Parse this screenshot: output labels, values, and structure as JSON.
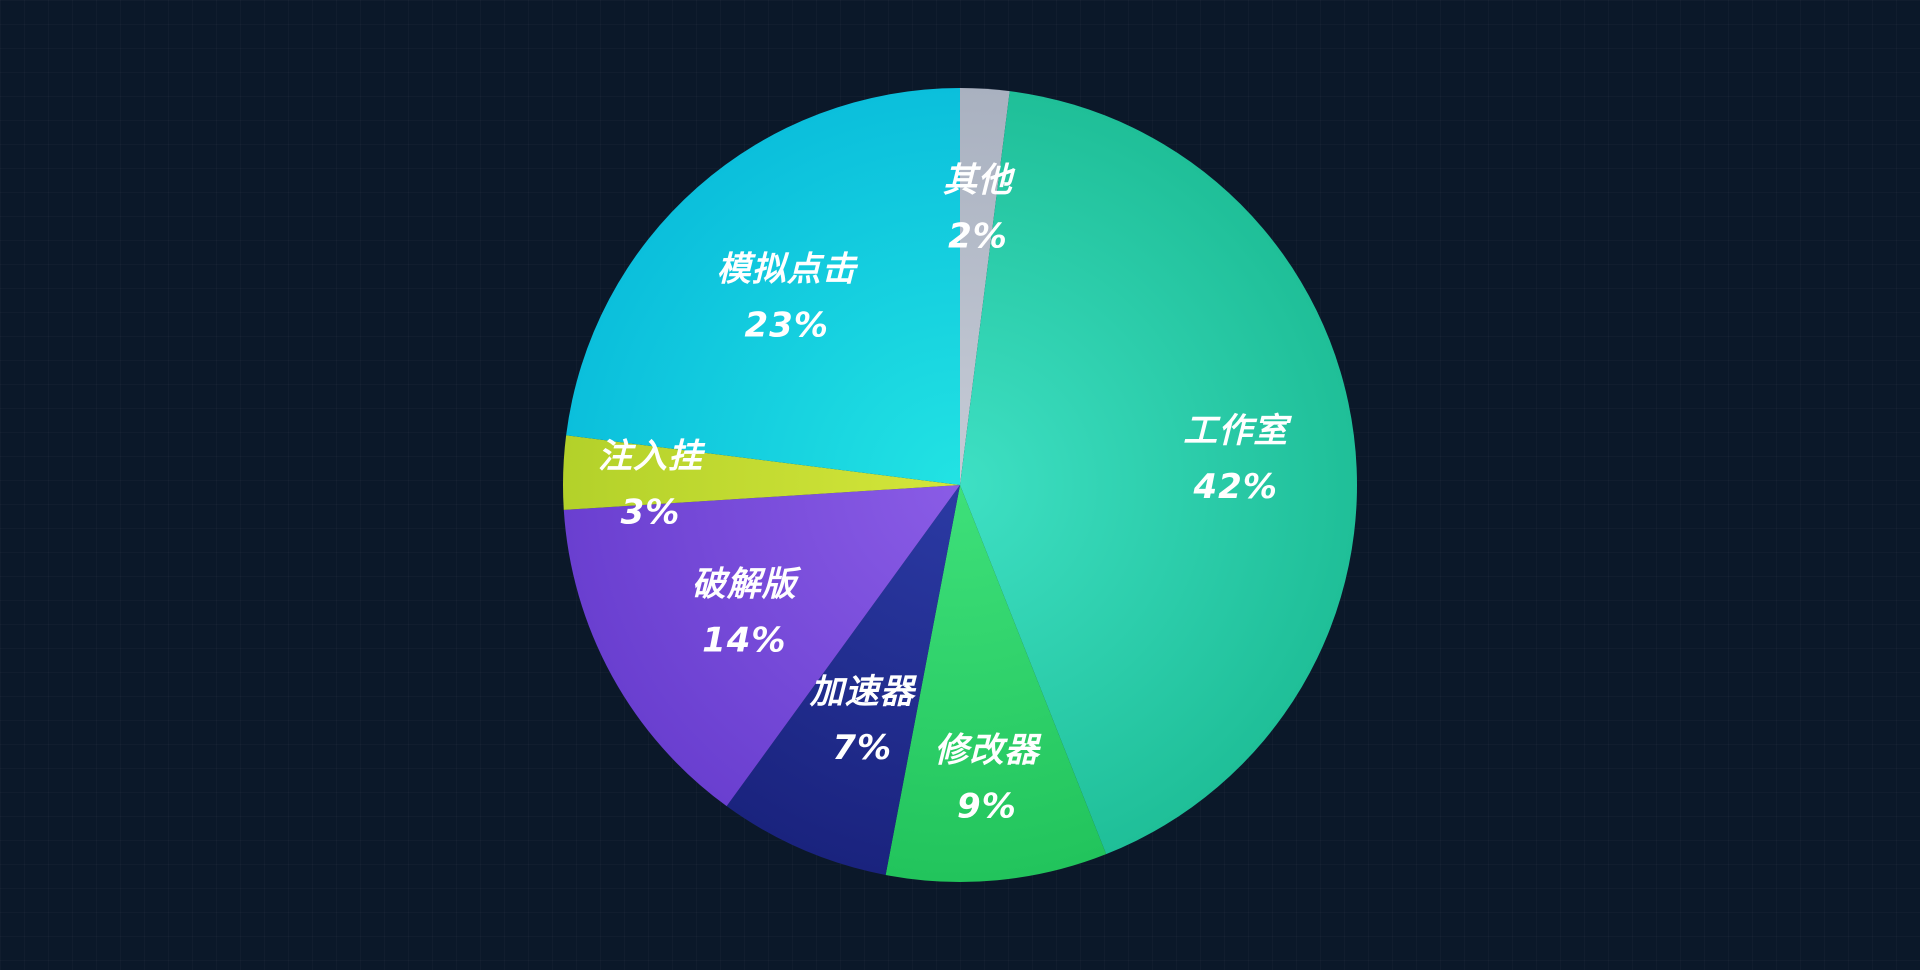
{
  "chart_data": {
    "type": "pie",
    "title": "",
    "start_angle_deg": 0,
    "direction": "clockwise",
    "slices": [
      {
        "label": "其他",
        "value": 2,
        "value_label": "2%",
        "color_start": "#c6cbd6",
        "color_end": "#a9b1c0"
      },
      {
        "label": "工作室",
        "value": 42,
        "value_label": "42%",
        "color_start": "#3ee0c4",
        "color_end": "#1fbf98"
      },
      {
        "label": "修改器",
        "value": 9,
        "value_label": "9%",
        "color_start": "#3ee07a",
        "color_end": "#22c45c"
      },
      {
        "label": "加速器",
        "value": 7,
        "value_label": "7%",
        "color_start": "#2b3aa4",
        "color_end": "#1a237e"
      },
      {
        "label": "破解版",
        "value": 14,
        "value_label": "14%",
        "color_start": "#8a5ce6",
        "color_end": "#6a3fd0"
      },
      {
        "label": "注入挂",
        "value": 3,
        "value_label": "3%",
        "color_start": "#d4e63a",
        "color_end": "#b3d12a"
      },
      {
        "label": "模拟点击",
        "value": 23,
        "value_label": "23%",
        "color_start": "#22e3e3",
        "color_end": "#0bbfdc"
      }
    ],
    "legend": "none",
    "labels_inside": true
  },
  "colors": {
    "background": "#0b1829",
    "label_text": "#ffffff"
  }
}
